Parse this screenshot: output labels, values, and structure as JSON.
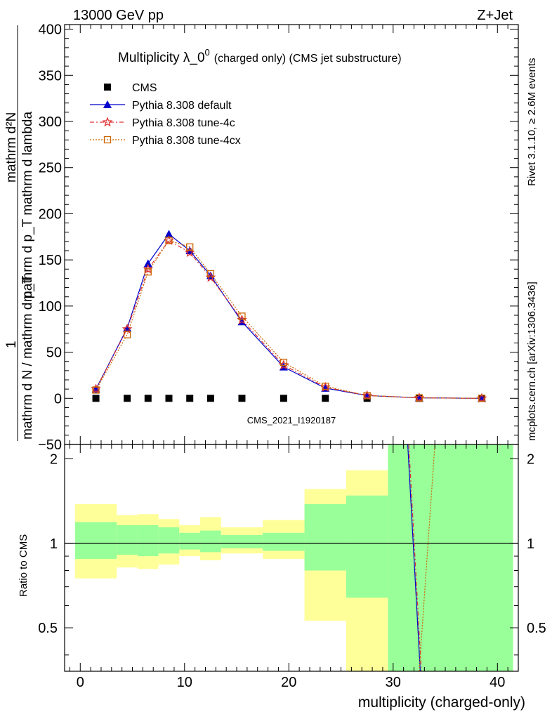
{
  "header": {
    "left": "13000 GeV pp",
    "right": "Z+Jet"
  },
  "title": {
    "main": "Multiplicity λ_0",
    "superscript": "0",
    "suffix": "(charged only) (CMS jet substructure)"
  },
  "side_labels": {
    "rivet": "Rivet 3.1.10, ≥ 2.6M events",
    "mcplots": "mcplots.cern.ch [arXiv:1306.3436]"
  },
  "watermark": "CMS_2021_I1920187",
  "chart_data": [
    {
      "type": "line",
      "panel": "main",
      "ylabel_numerator": "1",
      "ylabel_denominator": "mathrm d N / mathrm d p_T",
      "ylabel_lines": [
        "mathrm d²N",
        "mathrm d p_T mathrm d lambda"
      ],
      "xlim": [
        -1.5,
        42
      ],
      "ylim": [
        -50,
        405
      ],
      "x_ticks": [
        0,
        10,
        20,
        30,
        40
      ],
      "y_ticks": [
        -50,
        0,
        50,
        100,
        150,
        200,
        250,
        300,
        350,
        400
      ],
      "legend_position": "top-left",
      "series": [
        {
          "name": "CMS",
          "color": "#000000",
          "marker": "square",
          "x": [
            1.5,
            4.5,
            6.5,
            8.5,
            10.5,
            12.5,
            15.5,
            19.5,
            23.5,
            27.5,
            32.5,
            38.5
          ],
          "y": [
            0,
            0,
            0,
            0,
            0,
            0,
            0,
            0,
            0,
            0,
            0,
            0
          ]
        },
        {
          "name": "Pythia 8.308 default",
          "color": "#0000cc",
          "marker": "triangle",
          "x": [
            1.5,
            4.5,
            6.5,
            8.5,
            10.5,
            12.5,
            15.5,
            19.5,
            23.5,
            27.5,
            32.5,
            38.5
          ],
          "y": [
            10,
            76,
            146,
            178,
            160,
            133,
            83,
            34,
            11,
            3,
            0.5,
            0
          ]
        },
        {
          "name": "Pythia 8.308 tune-4c",
          "color": "#dd3333",
          "marker": "star",
          "x": [
            1.5,
            4.5,
            6.5,
            8.5,
            10.5,
            12.5,
            15.5,
            19.5,
            23.5,
            27.5,
            32.5,
            38.5
          ],
          "y": [
            10,
            75,
            140,
            171,
            158,
            131,
            85,
            36,
            12,
            3,
            0.5,
            0
          ]
        },
        {
          "name": "Pythia 8.308 tune-4cx",
          "color": "#cc6600",
          "marker": "open-square",
          "x": [
            1.5,
            4.5,
            6.5,
            8.5,
            10.5,
            12.5,
            15.5,
            19.5,
            23.5,
            27.5,
            32.5,
            38.5
          ],
          "y": [
            9,
            69,
            137,
            171,
            164,
            135,
            89,
            39,
            13,
            3,
            0.5,
            0
          ]
        }
      ]
    },
    {
      "type": "area",
      "panel": "ratio",
      "ylabel": "Ratio to CMS",
      "xlabel": "multiplicity (charged-only)",
      "xlim": [
        -1.5,
        42
      ],
      "ylim": [
        0.35,
        2.25
      ],
      "y_ticks": [
        0.5,
        1,
        2
      ],
      "x_ticks": [
        0,
        10,
        20,
        30,
        40
      ],
      "bands": [
        {
          "x0": -0.5,
          "x1": 3.5,
          "y1_lo": 0.75,
          "y1_hi": 1.38,
          "g_lo": 0.88,
          "g_hi": 1.19
        },
        {
          "x0": 3.5,
          "x1": 5.5,
          "y1_lo": 0.82,
          "y1_hi": 1.26,
          "g_lo": 0.91,
          "g_hi": 1.16
        },
        {
          "x0": 5.5,
          "x1": 7.5,
          "y1_lo": 0.81,
          "y1_hi": 1.27,
          "g_lo": 0.9,
          "g_hi": 1.16
        },
        {
          "x0": 7.5,
          "x1": 9.5,
          "y1_lo": 0.84,
          "y1_hi": 1.22,
          "g_lo": 0.92,
          "g_hi": 1.14
        },
        {
          "x0": 9.5,
          "x1": 11.5,
          "y1_lo": 0.9,
          "y1_hi": 1.16,
          "g_lo": 0.95,
          "g_hi": 1.09
        },
        {
          "x0": 11.5,
          "x1": 13.5,
          "y1_lo": 0.87,
          "y1_hi": 1.24,
          "g_lo": 0.93,
          "g_hi": 1.11
        },
        {
          "x0": 13.5,
          "x1": 17.5,
          "y1_lo": 0.92,
          "y1_hi": 1.14,
          "g_lo": 0.96,
          "g_hi": 1.07
        },
        {
          "x0": 17.5,
          "x1": 21.5,
          "y1_lo": 0.88,
          "y1_hi": 1.21,
          "g_lo": 0.94,
          "g_hi": 1.09
        },
        {
          "x0": 21.5,
          "x1": 25.5,
          "y1_lo": 0.53,
          "y1_hi": 1.56,
          "g_lo": 0.8,
          "g_hi": 1.38
        },
        {
          "x0": 25.5,
          "x1": 29.5,
          "y1_lo": 0.3,
          "y1_hi": 1.82,
          "g_lo": 0.64,
          "g_hi": 1.48
        },
        {
          "x0": 29.5,
          "x1": 41.5,
          "y1_lo": 0.3,
          "y1_hi": 2.4,
          "g_lo": 0.3,
          "g_hi": 2.4
        }
      ],
      "reference_line": 1,
      "series_lines": [
        {
          "name": "Pythia 8.308 default",
          "color": "#0000cc",
          "x": [
            31.4,
            32.6
          ],
          "y": [
            2.4,
            0.3
          ]
        },
        {
          "name": "Pythia 8.308 tune-4c",
          "color": "#dd3333",
          "x": [
            31.5,
            32.7
          ],
          "y": [
            2.4,
            0.3
          ]
        },
        {
          "name": "Pythia 8.308 tune-4cx",
          "color": "#cc6600",
          "x": [
            32.5,
            34.0
          ],
          "y": [
            0.3,
            2.4
          ]
        }
      ]
    }
  ],
  "colors": {
    "band_yellow": "#ffff99",
    "band_green": "#99ff99"
  }
}
